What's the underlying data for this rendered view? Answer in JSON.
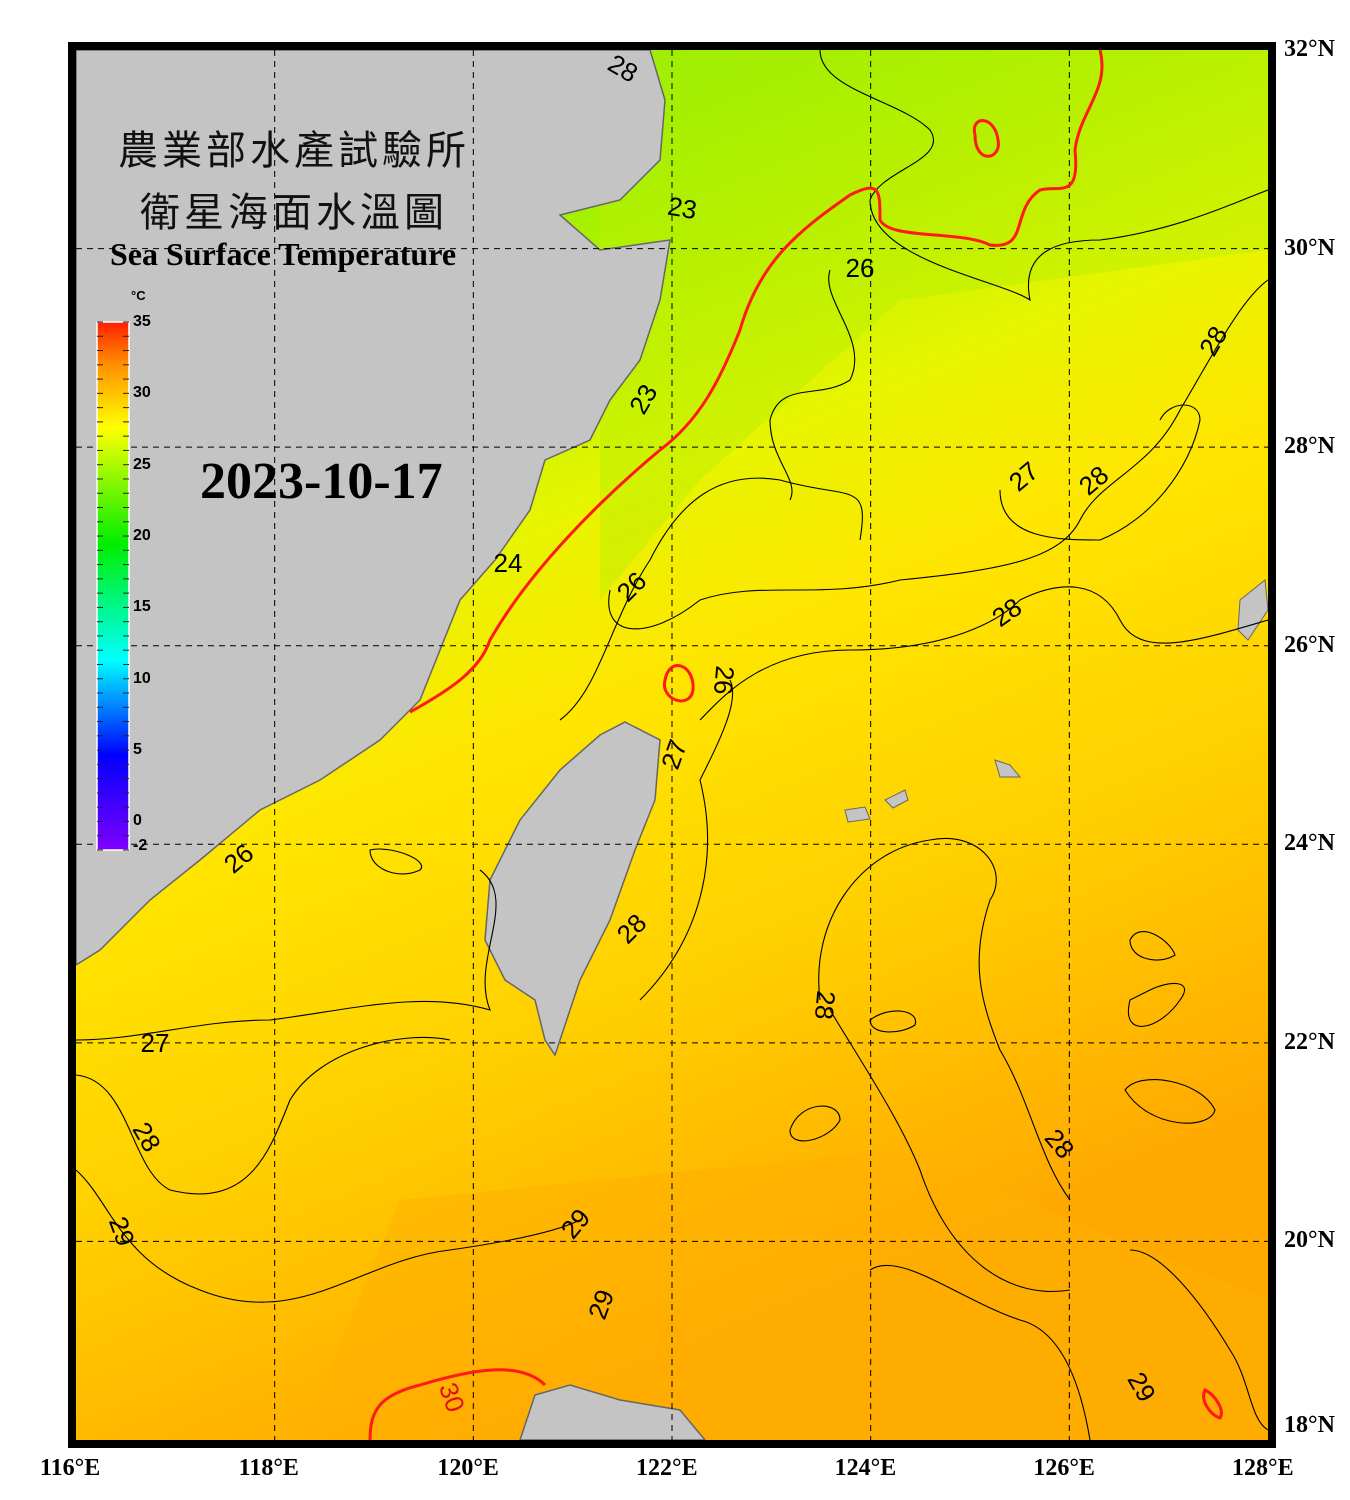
{
  "title": {
    "line1": "農業部水產試驗所",
    "line2": "衛星海面水溫圖",
    "english": "Sea Surface Temperature"
  },
  "date": "2023-10-17",
  "colorbar": {
    "unit": "°C",
    "min": -2,
    "max": 35,
    "ticks": [
      "35",
      "30",
      "25",
      "20",
      "15",
      "10",
      "5",
      "0",
      "-2"
    ],
    "colors": [
      "#7f00ff",
      "#0000ff",
      "#00ffff",
      "#00ff00",
      "#ffff00",
      "#ff8000",
      "#ff0000"
    ]
  },
  "axes": {
    "lon_labels": [
      "116°E",
      "118°E",
      "120°E",
      "122°E",
      "124°E",
      "126°E",
      "128°E"
    ],
    "lat_labels": [
      "32°N",
      "30°N",
      "28°N",
      "26°N",
      "24°N",
      "22°N",
      "20°N",
      "18°N"
    ],
    "lon_range": [
      116,
      128
    ],
    "lat_range": [
      18,
      32
    ]
  },
  "contour_labels": [
    "23",
    "23",
    "24",
    "26",
    "26",
    "26",
    "27",
    "28",
    "28",
    "28",
    "26",
    "27",
    "28",
    "27",
    "28",
    "28",
    "28",
    "29",
    "29",
    "29",
    "30",
    "29",
    "28"
  ],
  "colors": {
    "land": "#c4c4c4",
    "highlight_contour": "#ff1a1a",
    "contour": "#000000"
  }
}
